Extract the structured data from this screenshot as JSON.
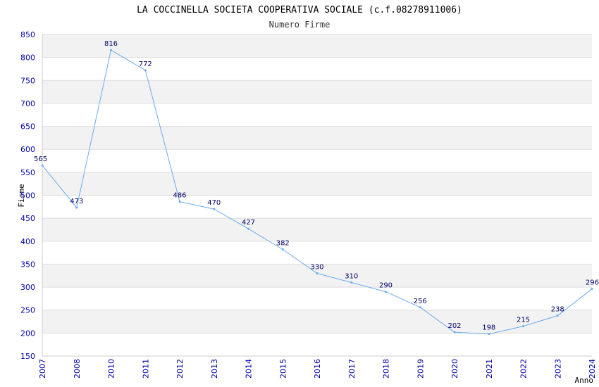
{
  "chart_data": {
    "type": "line",
    "title": "LA COCCINELLA SOCIETA COOPERATIVA SOCIALE (c.f.08278911006)",
    "subtitle": "Numero Firme",
    "xlabel": "Anno",
    "ylabel": "Firme",
    "ylim": [
      150,
      850
    ],
    "ytick_step": 50,
    "grid": true,
    "series": [
      {
        "name": "Numero Firme",
        "color": "#6aaaf0",
        "x": [
          "2007",
          "2008",
          "2010",
          "2011",
          "2012",
          "2013",
          "2014",
          "2015",
          "2016",
          "2017",
          "2018",
          "2019",
          "2020",
          "2021",
          "2022",
          "2023",
          "2024"
        ],
        "values": [
          565,
          473,
          816,
          772,
          486,
          470,
          427,
          382,
          330,
          310,
          290,
          256,
          202,
          198,
          215,
          238,
          296
        ]
      }
    ],
    "colors": {
      "band": "#f2f2f2",
      "grid": "#dddddd",
      "tick_text": "#0000aa",
      "label_text": "#000066"
    }
  }
}
